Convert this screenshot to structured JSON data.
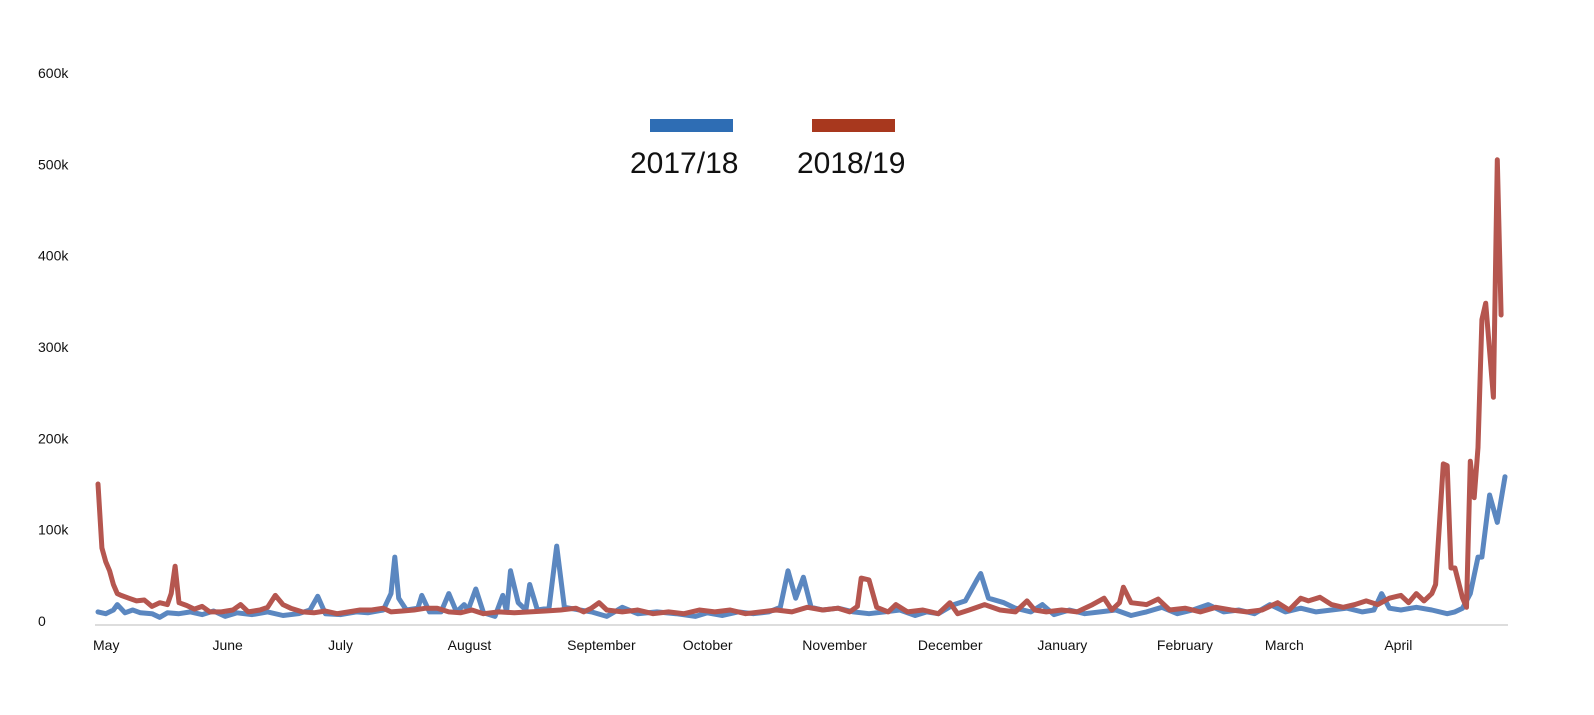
{
  "chart_data": {
    "type": "line",
    "title": "",
    "xlabel": "",
    "ylabel": "",
    "ylim": [
      0,
      600000
    ],
    "xlim_days": [
      0,
      365
    ],
    "grid": false,
    "legend_placement": "top-center",
    "y_ticks": [
      {
        "value": 0,
        "label": "0"
      },
      {
        "value": 100000,
        "label": "100k"
      },
      {
        "value": 200000,
        "label": "200k"
      },
      {
        "value": 300000,
        "label": "300k"
      },
      {
        "value": 400000,
        "label": "400k"
      },
      {
        "value": 500000,
        "label": "500k"
      },
      {
        "value": 600000,
        "label": "600k"
      }
    ],
    "x_ticks": [
      {
        "day": 0,
        "label": "May"
      },
      {
        "day": 31,
        "label": "June"
      },
      {
        "day": 61,
        "label": "July"
      },
      {
        "day": 92,
        "label": "August"
      },
      {
        "day": 123,
        "label": "September"
      },
      {
        "day": 153,
        "label": "October"
      },
      {
        "day": 184,
        "label": "November"
      },
      {
        "day": 214,
        "label": "December"
      },
      {
        "day": 245,
        "label": "January"
      },
      {
        "day": 276,
        "label": "February"
      },
      {
        "day": 304,
        "label": "March"
      },
      {
        "day": 335,
        "label": "April"
      }
    ],
    "series": [
      {
        "name": "2017/18",
        "legend_color": "#2e6db4",
        "line_color": "#5b87c0",
        "points": [
          [
            0,
            10000
          ],
          [
            2,
            8000
          ],
          [
            4,
            12000
          ],
          [
            5,
            18000
          ],
          [
            7,
            9000
          ],
          [
            9,
            12000
          ],
          [
            11,
            9000
          ],
          [
            14,
            8000
          ],
          [
            16,
            4000
          ],
          [
            18,
            9000
          ],
          [
            21,
            8000
          ],
          [
            24,
            10000
          ],
          [
            27,
            7000
          ],
          [
            30,
            11000
          ],
          [
            33,
            5000
          ],
          [
            36,
            9000
          ],
          [
            40,
            7000
          ],
          [
            44,
            10000
          ],
          [
            48,
            6000
          ],
          [
            52,
            8000
          ],
          [
            55,
            12000
          ],
          [
            57,
            27000
          ],
          [
            59,
            8000
          ],
          [
            63,
            7000
          ],
          [
            67,
            10000
          ],
          [
            70,
            9000
          ],
          [
            74,
            12000
          ],
          [
            76,
            30000
          ],
          [
            77,
            70000
          ],
          [
            78,
            25000
          ],
          [
            80,
            12000
          ],
          [
            83,
            14000
          ],
          [
            84,
            28000
          ],
          [
            86,
            10000
          ],
          [
            89,
            10000
          ],
          [
            91,
            30000
          ],
          [
            93,
            10000
          ],
          [
            95,
            18000
          ],
          [
            96,
            12000
          ],
          [
            98,
            35000
          ],
          [
            100,
            9000
          ],
          [
            103,
            5000
          ],
          [
            105,
            28000
          ],
          [
            106,
            10000
          ],
          [
            107,
            55000
          ],
          [
            109,
            20000
          ],
          [
            111,
            12000
          ],
          [
            112,
            40000
          ],
          [
            114,
            12000
          ],
          [
            117,
            14000
          ],
          [
            119,
            82000
          ],
          [
            121,
            15000
          ],
          [
            125,
            12000
          ],
          [
            128,
            10000
          ],
          [
            132,
            5000
          ],
          [
            136,
            15000
          ],
          [
            140,
            8000
          ],
          [
            145,
            10000
          ],
          [
            150,
            8000
          ],
          [
            155,
            5000
          ],
          [
            158,
            9000
          ],
          [
            162,
            6000
          ],
          [
            166,
            10000
          ],
          [
            170,
            8000
          ],
          [
            174,
            10000
          ],
          [
            177,
            15000
          ],
          [
            179,
            55000
          ],
          [
            181,
            25000
          ],
          [
            183,
            48000
          ],
          [
            185,
            15000
          ],
          [
            188,
            12000
          ],
          [
            192,
            14000
          ],
          [
            196,
            10000
          ],
          [
            200,
            8000
          ],
          [
            204,
            10000
          ],
          [
            208,
            12000
          ],
          [
            212,
            6000
          ],
          [
            215,
            10000
          ],
          [
            218,
            8000
          ],
          [
            222,
            18000
          ],
          [
            225,
            22000
          ],
          [
            228,
            45000
          ],
          [
            229,
            52000
          ],
          [
            231,
            25000
          ],
          [
            235,
            20000
          ],
          [
            238,
            14000
          ],
          [
            242,
            10000
          ],
          [
            245,
            18000
          ],
          [
            248,
            7000
          ],
          [
            252,
            12000
          ],
          [
            256,
            8000
          ],
          [
            260,
            10000
          ],
          [
            264,
            12000
          ],
          [
            268,
            6000
          ],
          [
            272,
            10000
          ],
          [
            276,
            15000
          ],
          [
            280,
            8000
          ],
          [
            284,
            12000
          ],
          [
            288,
            18000
          ],
          [
            292,
            10000
          ],
          [
            296,
            12000
          ],
          [
            300,
            8000
          ],
          [
            304,
            18000
          ],
          [
            308,
            10000
          ],
          [
            312,
            14000
          ],
          [
            316,
            10000
          ],
          [
            320,
            12000
          ],
          [
            324,
            14000
          ],
          [
            328,
            10000
          ],
          [
            331,
            12000
          ],
          [
            333,
            30000
          ],
          [
            335,
            14000
          ],
          [
            338,
            12000
          ],
          [
            342,
            15000
          ],
          [
            346,
            12000
          ],
          [
            350,
            8000
          ],
          [
            352,
            10000
          ],
          [
            354,
            14000
          ],
          [
            356,
            30000
          ],
          [
            358,
            70000
          ],
          [
            359,
            70000
          ],
          [
            361,
            138000
          ],
          [
            363,
            108000
          ],
          [
            365,
            158000
          ]
        ]
      },
      {
        "name": "2018/19",
        "legend_color": "#a8381e",
        "line_color": "#b5564f",
        "points": [
          [
            0,
            150000
          ],
          [
            1,
            80000
          ],
          [
            2,
            65000
          ],
          [
            3,
            55000
          ],
          [
            4,
            40000
          ],
          [
            5,
            30000
          ],
          [
            6,
            28000
          ],
          [
            8,
            25000
          ],
          [
            10,
            22000
          ],
          [
            12,
            23000
          ],
          [
            14,
            16000
          ],
          [
            16,
            20000
          ],
          [
            18,
            18000
          ],
          [
            19,
            30000
          ],
          [
            20,
            60000
          ],
          [
            21,
            20000
          ],
          [
            23,
            17000
          ],
          [
            25,
            13000
          ],
          [
            27,
            16000
          ],
          [
            29,
            10000
          ],
          [
            32,
            10000
          ],
          [
            35,
            12000
          ],
          [
            37,
            18000
          ],
          [
            39,
            10000
          ],
          [
            42,
            12000
          ],
          [
            44,
            15000
          ],
          [
            46,
            28000
          ],
          [
            48,
            18000
          ],
          [
            50,
            14000
          ],
          [
            53,
            10000
          ],
          [
            56,
            9000
          ],
          [
            59,
            11000
          ],
          [
            62,
            8000
          ],
          [
            65,
            10000
          ],
          [
            68,
            12000
          ],
          [
            71,
            12000
          ],
          [
            74,
            14000
          ],
          [
            76,
            10000
          ],
          [
            79,
            11000
          ],
          [
            82,
            12000
          ],
          [
            85,
            14000
          ],
          [
            88,
            14000
          ],
          [
            91,
            10000
          ],
          [
            94,
            9000
          ],
          [
            97,
            12000
          ],
          [
            100,
            8000
          ],
          [
            104,
            10000
          ],
          [
            108,
            9000
          ],
          [
            112,
            10000
          ],
          [
            116,
            11000
          ],
          [
            120,
            12000
          ],
          [
            124,
            14000
          ],
          [
            126,
            10000
          ],
          [
            128,
            14000
          ],
          [
            130,
            20000
          ],
          [
            132,
            12000
          ],
          [
            136,
            10000
          ],
          [
            140,
            12000
          ],
          [
            144,
            8000
          ],
          [
            148,
            10000
          ],
          [
            152,
            8000
          ],
          [
            156,
            12000
          ],
          [
            160,
            10000
          ],
          [
            164,
            12000
          ],
          [
            168,
            8000
          ],
          [
            172,
            10000
          ],
          [
            176,
            12000
          ],
          [
            180,
            10000
          ],
          [
            184,
            15000
          ],
          [
            188,
            12000
          ],
          [
            192,
            14000
          ],
          [
            195,
            10000
          ],
          [
            197,
            16000
          ],
          [
            198,
            47000
          ],
          [
            200,
            45000
          ],
          [
            202,
            15000
          ],
          [
            205,
            10000
          ],
          [
            207,
            18000
          ],
          [
            210,
            10000
          ],
          [
            214,
            12000
          ],
          [
            218,
            8000
          ],
          [
            221,
            20000
          ],
          [
            223,
            8000
          ],
          [
            226,
            12000
          ],
          [
            230,
            18000
          ],
          [
            234,
            12000
          ],
          [
            238,
            10000
          ],
          [
            241,
            22000
          ],
          [
            243,
            12000
          ],
          [
            246,
            10000
          ],
          [
            250,
            12000
          ],
          [
            254,
            10000
          ],
          [
            258,
            18000
          ],
          [
            261,
            25000
          ],
          [
            263,
            12000
          ],
          [
            265,
            20000
          ],
          [
            266,
            37000
          ],
          [
            268,
            20000
          ],
          [
            272,
            18000
          ],
          [
            275,
            24000
          ],
          [
            278,
            12000
          ],
          [
            282,
            14000
          ],
          [
            286,
            10000
          ],
          [
            290,
            15000
          ],
          [
            294,
            12000
          ],
          [
            298,
            10000
          ],
          [
            302,
            12000
          ],
          [
            306,
            20000
          ],
          [
            309,
            12000
          ],
          [
            312,
            25000
          ],
          [
            314,
            22000
          ],
          [
            317,
            26000
          ],
          [
            320,
            18000
          ],
          [
            323,
            15000
          ],
          [
            326,
            18000
          ],
          [
            329,
            22000
          ],
          [
            332,
            18000
          ],
          [
            335,
            25000
          ],
          [
            338,
            28000
          ],
          [
            340,
            20000
          ],
          [
            342,
            30000
          ],
          [
            344,
            22000
          ],
          [
            346,
            30000
          ],
          [
            347,
            40000
          ],
          [
            349,
            172000
          ],
          [
            350,
            170000
          ],
          [
            351,
            58000
          ],
          [
            352,
            58000
          ],
          [
            354,
            25000
          ],
          [
            355,
            15000
          ],
          [
            356,
            175000
          ],
          [
            357,
            135000
          ],
          [
            358,
            190000
          ],
          [
            359,
            330000
          ],
          [
            360,
            348000
          ],
          [
            362,
            245000
          ],
          [
            363,
            505000
          ],
          [
            364,
            335000
          ]
        ]
      }
    ]
  }
}
